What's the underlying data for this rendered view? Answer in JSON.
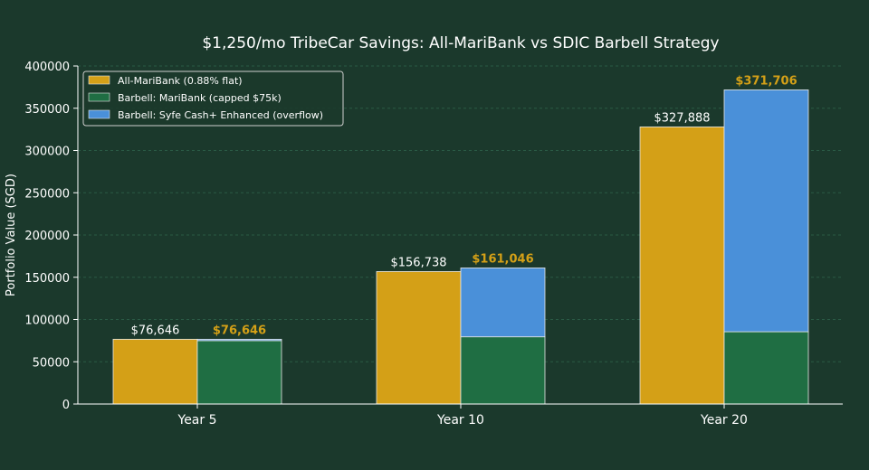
{
  "chart_data": {
    "type": "bar",
    "title": "$1,250/mo TribeCar Savings: All-MariBank vs SDIC Barbell Strategy",
    "xlabel": "",
    "ylabel": "Portfolio Value (SGD)",
    "ylim": [
      0,
      400000
    ],
    "yticks": [
      "0",
      "50000",
      "100000",
      "150000",
      "200000",
      "250000",
      "300000",
      "350000",
      "400000"
    ],
    "categories": [
      "Year 5",
      "Year 10",
      "Year 20"
    ],
    "grid": true,
    "legend_position": "top-left",
    "series": [
      {
        "name": "All-MariBank (0.88% flat)",
        "color": "#d4a017",
        "group": "All-MariBank",
        "values": [
          76646,
          156738,
          327888
        ]
      },
      {
        "name": "Barbell: MariBank (capped $75k)",
        "color": "#1f6e43",
        "group": "Barbell",
        "values": [
          75000,
          79500,
          85500
        ]
      },
      {
        "name": "Barbell: Syfe Cash+ Enhanced (overflow)",
        "color": "#4a90d9",
        "group": "Barbell",
        "values": [
          1646,
          81546,
          286206
        ]
      }
    ],
    "data_labels": {
      "all_maribank": [
        "$76,646",
        "$156,738",
        "$327,888"
      ],
      "barbell_total": [
        "$76,646",
        "$161,046",
        "$371,706"
      ]
    },
    "label_colors": {
      "all_maribank": "#ffffff",
      "barbell_total": "#d4a017"
    }
  }
}
